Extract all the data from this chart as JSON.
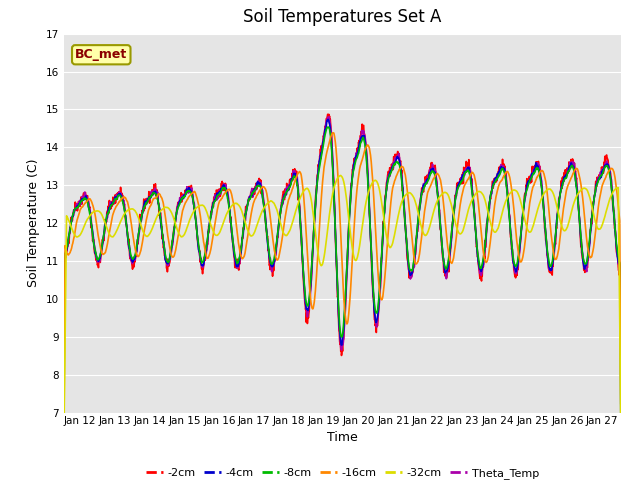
{
  "title": "Soil Temperatures Set A",
  "xlabel": "Time",
  "ylabel": "Soil Temperature (C)",
  "ylim": [
    7.0,
    17.0
  ],
  "yticks": [
    7.0,
    8.0,
    9.0,
    10.0,
    11.0,
    12.0,
    13.0,
    14.0,
    15.0,
    16.0,
    17.0
  ],
  "xtick_labels": [
    "Jan 12",
    "Jan 13",
    "Jan 14",
    "Jan 15",
    "Jan 16",
    "Jan 17",
    "Jan 18",
    "Jan 19",
    "Jan 20",
    "Jan 21",
    "Jan 22",
    "Jan 23",
    "Jan 24",
    "Jan 25",
    "Jan 26",
    "Jan 27"
  ],
  "colors": {
    "-2cm": "#ff0000",
    "-4cm": "#0000cc",
    "-8cm": "#00bb00",
    "-16cm": "#ff8800",
    "-32cm": "#dddd00",
    "Theta_Temp": "#aa00aa"
  },
  "lw": 1.2,
  "annotation_text": "BC_met",
  "annotation_color": "#8b0000",
  "annotation_bg": "#ffffaa",
  "annotation_edge": "#999900",
  "bg_color": "#e5e5e5",
  "fig_color": "#ffffff",
  "grid_color": "#ffffff",
  "title_fontsize": 12,
  "axis_fontsize": 9,
  "tick_fontsize": 7.5,
  "legend_fontsize": 8
}
